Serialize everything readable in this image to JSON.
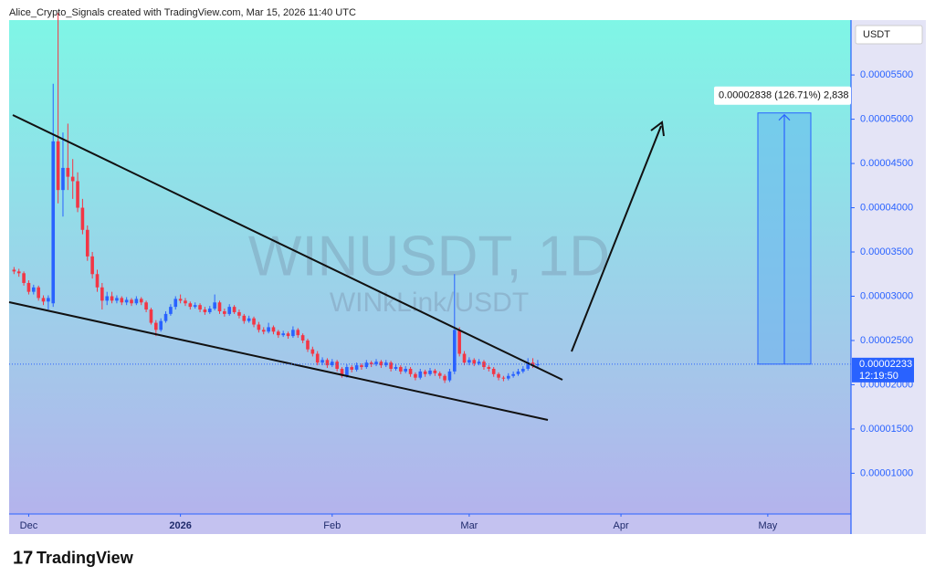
{
  "header": "Alice_Crypto_Signals created with TradingView.com, Mar 15, 2026 11:40 UTC",
  "logo": "TradingView",
  "chart_data": {
    "type": "candlestick",
    "title": "WINUSDT, 1D",
    "subtitle": "WINkLink/USDT",
    "currency": "USDT",
    "up_color": "#2962ff",
    "down_color": "#f23645",
    "xlim": [
      -4,
      168
    ],
    "xticks": [
      {
        "value": 0,
        "label": "Dec"
      },
      {
        "value": 31,
        "label": "2026"
      },
      {
        "value": 62,
        "label": "Feb"
      },
      {
        "value": 90,
        "label": "Mar"
      },
      {
        "value": 121,
        "label": "Apr"
      },
      {
        "value": 151,
        "label": "May"
      }
    ],
    "ylim": [
      5.4e-06,
      6.12e-05
    ],
    "yticks": [
      {
        "value": 5.5e-05,
        "label": "0.00005500"
      },
      {
        "value": 5e-05,
        "label": "0.00005000"
      },
      {
        "value": 4.5e-05,
        "label": "0.00004500"
      },
      {
        "value": 4e-05,
        "label": "0.00004000"
      },
      {
        "value": 3.5e-05,
        "label": "0.00003500"
      },
      {
        "value": 3e-05,
        "label": "0.00003000"
      },
      {
        "value": 2.5e-05,
        "label": "0.00002500"
      },
      {
        "value": 2e-05,
        "label": "0.00002000"
      },
      {
        "value": 1.5e-05,
        "label": "0.00001500"
      },
      {
        "value": 1e-05,
        "label": "0.00001000"
      }
    ],
    "last_price": {
      "value": 2.233e-05,
      "label": "0.00002233"
    },
    "countdown": "12:19:50",
    "measure": {
      "from": 2.233e-05,
      "to": 5.071e-05,
      "label": "0.00002838 (126.71%) 2,838"
    },
    "x": [
      -3,
      -2,
      -1,
      0,
      1,
      2,
      3,
      4,
      5,
      6,
      7,
      8,
      9,
      10,
      11,
      12,
      13,
      14,
      15,
      16,
      17,
      18,
      19,
      20,
      21,
      22,
      23,
      24,
      25,
      26,
      27,
      28,
      29,
      30,
      31,
      32,
      33,
      34,
      35,
      36,
      37,
      38,
      39,
      40,
      41,
      42,
      43,
      44,
      45,
      46,
      47,
      48,
      49,
      50,
      51,
      52,
      53,
      54,
      55,
      56,
      57,
      58,
      59,
      60,
      61,
      62,
      63,
      64,
      65,
      66,
      67,
      68,
      69,
      70,
      71,
      72,
      73,
      74,
      75,
      76,
      77,
      78,
      79,
      80,
      81,
      82,
      83,
      84,
      85,
      86,
      87,
      88,
      89,
      90,
      91,
      92,
      93,
      94,
      95,
      96,
      97,
      98,
      99,
      100,
      101,
      102,
      103,
      104
    ],
    "open": [
      3.3e-05,
      3.28e-05,
      3.26e-05,
      3.15e-05,
      3.05e-05,
      3.1e-05,
      2.98e-05,
      2.94e-05,
      2.92e-05,
      4.75e-05,
      4.2e-05,
      4.45e-05,
      4.35e-05,
      4.3e-05,
      4e-05,
      3.75e-05,
      3.45e-05,
      3.25e-05,
      3.1e-05,
      2.95e-05,
      3e-05,
      2.95e-05,
      2.98e-05,
      2.93e-05,
      2.96e-05,
      2.92e-05,
      2.97e-05,
      2.93e-05,
      2.85e-05,
      2.7e-05,
      2.62e-05,
      2.72e-05,
      2.8e-05,
      2.88e-05,
      2.97e-05,
      2.95e-05,
      2.92e-05,
      2.88e-05,
      2.9e-05,
      2.85e-05,
      2.82e-05,
      2.86e-05,
      2.93e-05,
      2.83e-05,
      2.8e-05,
      2.88e-05,
      2.82e-05,
      2.78e-05,
      2.72e-05,
      2.75e-05,
      2.68e-05,
      2.62e-05,
      2.6e-05,
      2.65e-05,
      2.6e-05,
      2.56e-05,
      2.58e-05,
      2.55e-05,
      2.62e-05,
      2.56e-05,
      2.5e-05,
      2.4e-05,
      2.35e-05,
      2.25e-05,
      2.28e-05,
      2.22e-05,
      2.26e-05,
      2.18e-05,
      2.1e-05,
      2.2e-05,
      2.17e-05,
      2.22e-05,
      2.2e-05,
      2.25e-05,
      2.23e-05,
      2.26e-05,
      2.22e-05,
      2.25e-05,
      2.18e-05,
      2.2e-05,
      2.15e-05,
      2.18e-05,
      2.12e-05,
      2.08e-05,
      2.15e-05,
      2.12e-05,
      2.16e-05,
      2.13e-05,
      2.1e-05,
      2.05e-05,
      2.15e-05,
      2.62e-05,
      2.35e-05,
      2.25e-05,
      2.28e-05,
      2.24e-05,
      2.26e-05,
      2.2e-05,
      2.18e-05,
      2.12e-05,
      2.08e-05,
      2.07e-05,
      2.1e-05,
      2.12e-05,
      2.15e-05,
      2.18e-05,
      2.25e-05,
      2.22e-05
    ],
    "high": [
      3.33e-05,
      3.31e-05,
      3.28e-05,
      3.18e-05,
      3.13e-05,
      3.12e-05,
      3.01e-05,
      3.01e-05,
      5.4e-05,
      6.2e-05,
      4.85e-05,
      4.95e-05,
      4.55e-05,
      4.4e-05,
      4.1e-05,
      3.8e-05,
      3.5e-05,
      3.3e-05,
      3.15e-05,
      3.05e-05,
      3.05e-05,
      3.01e-05,
      3e-05,
      2.99e-05,
      2.98e-05,
      3e-05,
      2.99e-05,
      2.95e-05,
      2.87e-05,
      2.73e-05,
      2.75e-05,
      2.83e-05,
      2.91e-05,
      3e-05,
      3.02e-05,
      2.98e-05,
      2.94e-05,
      2.93e-05,
      2.92e-05,
      2.88e-05,
      2.89e-05,
      3.02e-05,
      2.95e-05,
      2.86e-05,
      2.91e-05,
      2.9e-05,
      2.85e-05,
      2.8e-05,
      2.78e-05,
      2.77e-05,
      2.71e-05,
      2.65e-05,
      2.7e-05,
      2.67e-05,
      2.62e-05,
      2.61e-05,
      2.6e-05,
      2.66e-05,
      2.64e-05,
      2.58e-05,
      2.52e-05,
      2.43e-05,
      2.38e-05,
      2.31e-05,
      2.3e-05,
      2.29e-05,
      2.28e-05,
      2.2e-05,
      2.23e-05,
      2.22e-05,
      2.25e-05,
      2.24e-05,
      2.28e-05,
      2.27e-05,
      2.29e-05,
      2.28e-05,
      2.28e-05,
      2.27e-05,
      2.23e-05,
      2.22e-05,
      2.21e-05,
      2.2e-05,
      2.14e-05,
      2.18e-05,
      2.17e-05,
      2.19e-05,
      2.18e-05,
      2.15e-05,
      2.12e-05,
      2.18e-05,
      3.25e-05,
      2.65e-05,
      2.38e-05,
      2.31e-05,
      2.3e-05,
      2.29e-05,
      2.28e-05,
      2.22e-05,
      2.2e-05,
      2.14e-05,
      2.1e-05,
      2.13e-05,
      2.15e-05,
      2.18e-05,
      2.21e-05,
      2.3e-05,
      2.3e-05,
      2.28e-05
    ],
    "low": [
      3.25e-05,
      3.22e-05,
      3.12e-05,
      3.02e-05,
      3.02e-05,
      2.95e-05,
      2.9e-05,
      2.85e-05,
      2.88e-05,
      4.05e-05,
      3.9e-05,
      4.2e-05,
      4.1e-05,
      3.95e-05,
      3.7e-05,
      3.4e-05,
      3.2e-05,
      3.05e-05,
      2.85e-05,
      2.9e-05,
      2.92e-05,
      2.92e-05,
      2.9e-05,
      2.9e-05,
      2.89e-05,
      2.9e-05,
      2.9e-05,
      2.82e-05,
      2.68e-05,
      2.55e-05,
      2.6e-05,
      2.7e-05,
      2.78e-05,
      2.85e-05,
      2.92e-05,
      2.89e-05,
      2.85e-05,
      2.86e-05,
      2.82e-05,
      2.79e-05,
      2.8e-05,
      2.84e-05,
      2.8e-05,
      2.77e-05,
      2.78e-05,
      2.8e-05,
      2.75e-05,
      2.69e-05,
      2.7e-05,
      2.65e-05,
      2.59e-05,
      2.57e-05,
      2.58e-05,
      2.57e-05,
      2.53e-05,
      2.54e-05,
      2.52e-05,
      2.53e-05,
      2.53e-05,
      2.47e-05,
      2.37e-05,
      2.32e-05,
      2.22e-05,
      2.22e-05,
      2.19e-05,
      2.2e-05,
      2.15e-05,
      2.08e-05,
      2.08e-05,
      2.14e-05,
      2.15e-05,
      2.17e-05,
      2.18e-05,
      2.2e-05,
      2.21e-05,
      2.19e-05,
      2.2e-05,
      2.15e-05,
      2.16e-05,
      2.12e-05,
      2.13e-05,
      2.09e-05,
      2.05e-05,
      2.06e-05,
      2.09e-05,
      2.1e-05,
      2.1e-05,
      2.07e-05,
      2.02e-05,
      2.03e-05,
      2.12e-05,
      2.32e-05,
      2.22e-05,
      2.22e-05,
      2.21e-05,
      2.22e-05,
      2.17e-05,
      2.15e-05,
      2.09e-05,
      2.05e-05,
      2.04e-05,
      2.05e-05,
      2.08e-05,
      2.1e-05,
      2.13e-05,
      2.16e-05,
      2.19e-05,
      2.2e-05
    ],
    "close": [
      3.28e-05,
      3.26e-05,
      3.15e-05,
      3.05e-05,
      3.1e-05,
      2.98e-05,
      2.94e-05,
      2.98e-05,
      4.75e-05,
      4.2e-05,
      4.45e-05,
      4.35e-05,
      4.3e-05,
      4e-05,
      3.75e-05,
      3.45e-05,
      3.25e-05,
      3.1e-05,
      2.95e-05,
      3e-05,
      2.95e-05,
      2.98e-05,
      2.93e-05,
      2.96e-05,
      2.92e-05,
      2.97e-05,
      2.93e-05,
      2.85e-05,
      2.7e-05,
      2.62e-05,
      2.72e-05,
      2.8e-05,
      2.88e-05,
      2.97e-05,
      2.95e-05,
      2.92e-05,
      2.88e-05,
      2.9e-05,
      2.85e-05,
      2.82e-05,
      2.86e-05,
      2.93e-05,
      2.83e-05,
      2.8e-05,
      2.88e-05,
      2.82e-05,
      2.78e-05,
      2.72e-05,
      2.75e-05,
      2.68e-05,
      2.62e-05,
      2.6e-05,
      2.65e-05,
      2.6e-05,
      2.56e-05,
      2.58e-05,
      2.55e-05,
      2.62e-05,
      2.56e-05,
      2.5e-05,
      2.4e-05,
      2.35e-05,
      2.25e-05,
      2.28e-05,
      2.22e-05,
      2.26e-05,
      2.18e-05,
      2.1e-05,
      2.2e-05,
      2.17e-05,
      2.22e-05,
      2.2e-05,
      2.25e-05,
      2.23e-05,
      2.26e-05,
      2.22e-05,
      2.25e-05,
      2.18e-05,
      2.2e-05,
      2.15e-05,
      2.18e-05,
      2.12e-05,
      2.08e-05,
      2.15e-05,
      2.12e-05,
      2.16e-05,
      2.13e-05,
      2.1e-05,
      2.05e-05,
      2.15e-05,
      2.62e-05,
      2.35e-05,
      2.25e-05,
      2.28e-05,
      2.24e-05,
      2.26e-05,
      2.2e-05,
      2.18e-05,
      2.12e-05,
      2.08e-05,
      2.07e-05,
      2.1e-05,
      2.12e-05,
      2.15e-05,
      2.18e-05,
      2.25e-05,
      2.22e-05,
      2.233e-05
    ]
  }
}
